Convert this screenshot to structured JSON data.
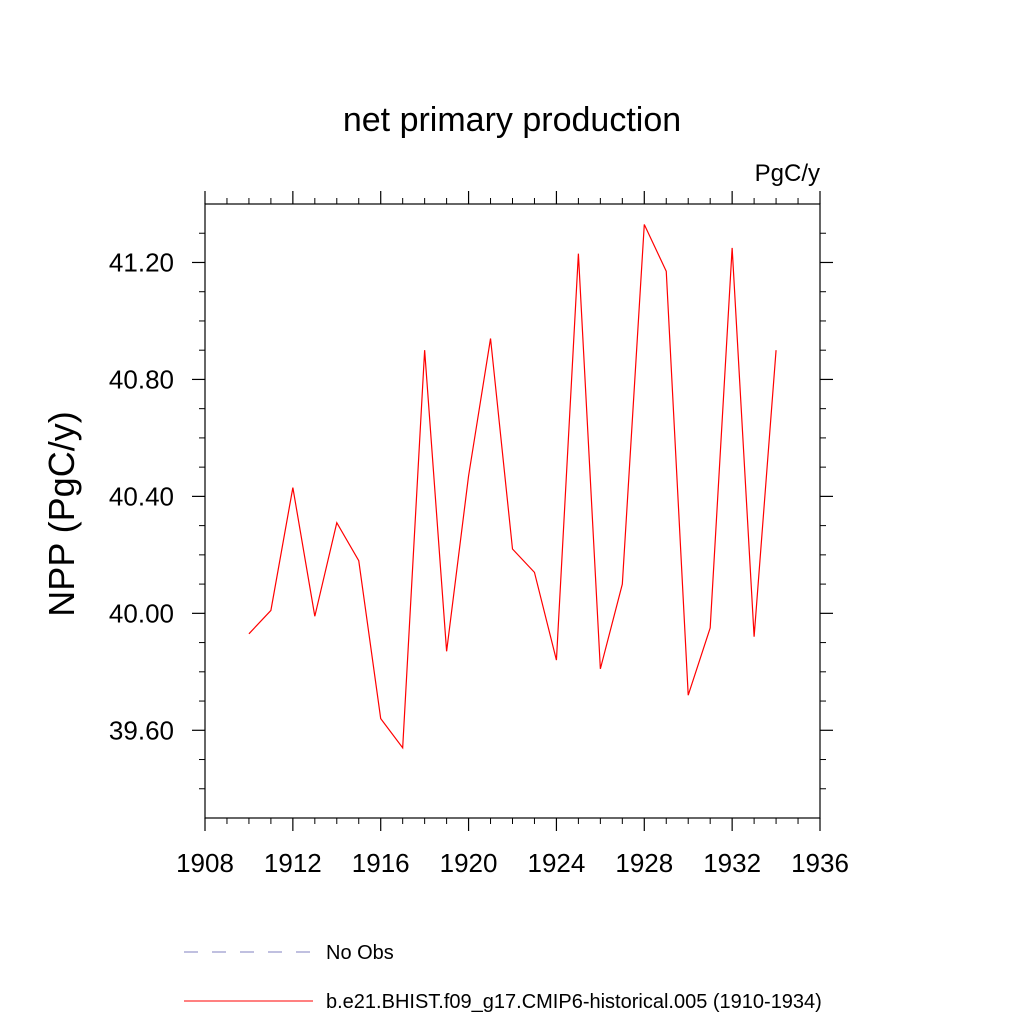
{
  "chart_data": {
    "type": "line",
    "title": "net primary production",
    "units_label": "PgC/y",
    "ylabel": "NPP  (PgC/y)",
    "xlabel": "",
    "xlim": [
      1908,
      1936
    ],
    "ylim": [
      39.3,
      41.4
    ],
    "x_ticks": [
      1908,
      1912,
      1916,
      1920,
      1924,
      1928,
      1932,
      1936
    ],
    "y_ticks": [
      39.6,
      40.0,
      40.4,
      40.8,
      41.2
    ],
    "y_tick_labels": [
      "39.60",
      "40.00",
      "40.40",
      "40.80",
      "41.20"
    ],
    "grid": false,
    "legend_position": "bottom",
    "series": [
      {
        "name": "b.e21.BHIST.f09_g17.CMIP6-historical.005 (1910-1934)",
        "color": "#ff0000",
        "style": "solid",
        "x": [
          1910,
          1911,
          1912,
          1913,
          1914,
          1915,
          1916,
          1917,
          1918,
          1919,
          1920,
          1921,
          1922,
          1923,
          1924,
          1925,
          1926,
          1927,
          1928,
          1929,
          1930,
          1931,
          1932,
          1933,
          1934
        ],
        "y": [
          39.93,
          40.01,
          40.43,
          39.99,
          40.31,
          40.18,
          39.64,
          39.54,
          40.9,
          39.87,
          40.47,
          40.94,
          40.22,
          40.14,
          39.84,
          41.23,
          39.81,
          40.1,
          41.33,
          41.17,
          39.72,
          39.95,
          41.25,
          39.92,
          40.9
        ]
      }
    ],
    "legend": [
      {
        "label": "No Obs",
        "color": "#8080c0",
        "style": "dashed"
      },
      {
        "label": "b.e21.BHIST.f09_g17.CMIP6-historical.005 (1910-1934)",
        "color": "#ff0000",
        "style": "solid"
      }
    ]
  }
}
